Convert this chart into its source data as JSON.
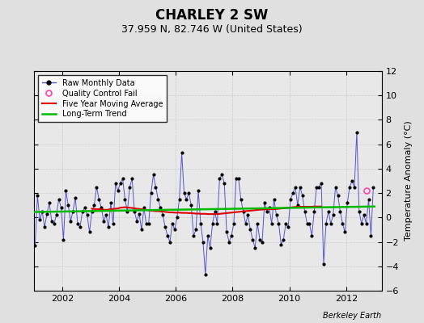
{
  "title": "CHARLEY 2 SW",
  "subtitle": "37.959 N, 82.746 W (United States)",
  "ylabel": "Temperature Anomaly (°C)",
  "credit": "Berkeley Earth",
  "ylim": [
    -6,
    12
  ],
  "yticks": [
    -6,
    -4,
    -2,
    0,
    2,
    4,
    6,
    8,
    10,
    12
  ],
  "xlim": [
    2001.0,
    2013.25
  ],
  "bg_color": "#e0e0e0",
  "plot_bg_color": "#e8e8e8",
  "raw_color": "#5555cc",
  "marker_color": "#000000",
  "ma_color": "#dd0000",
  "trend_color": "#00bb00",
  "qc_color": "#ff44aa",
  "raw_data": {
    "times": [
      2001.0417,
      2001.125,
      2001.2083,
      2001.2917,
      2001.375,
      2001.4583,
      2001.5417,
      2001.625,
      2001.7083,
      2001.7917,
      2001.875,
      2001.9583,
      2002.0417,
      2002.125,
      2002.2083,
      2002.2917,
      2002.375,
      2002.4583,
      2002.5417,
      2002.625,
      2002.7083,
      2002.7917,
      2002.875,
      2002.9583,
      2003.0417,
      2003.125,
      2003.2083,
      2003.2917,
      2003.375,
      2003.4583,
      2003.5417,
      2003.625,
      2003.7083,
      2003.7917,
      2003.875,
      2003.9583,
      2004.0417,
      2004.125,
      2004.2083,
      2004.2917,
      2004.375,
      2004.4583,
      2004.5417,
      2004.625,
      2004.7083,
      2004.7917,
      2004.875,
      2004.9583,
      2005.0417,
      2005.125,
      2005.2083,
      2005.2917,
      2005.375,
      2005.4583,
      2005.5417,
      2005.625,
      2005.7083,
      2005.7917,
      2005.875,
      2005.9583,
      2006.0417,
      2006.125,
      2006.2083,
      2006.2917,
      2006.375,
      2006.4583,
      2006.5417,
      2006.625,
      2006.7083,
      2006.7917,
      2006.875,
      2006.9583,
      2007.0417,
      2007.125,
      2007.2083,
      2007.2917,
      2007.375,
      2007.4583,
      2007.5417,
      2007.625,
      2007.7083,
      2007.7917,
      2007.875,
      2007.9583,
      2008.0417,
      2008.125,
      2008.2083,
      2008.2917,
      2008.375,
      2008.4583,
      2008.5417,
      2008.625,
      2008.7083,
      2008.7917,
      2008.875,
      2008.9583,
      2009.0417,
      2009.125,
      2009.2083,
      2009.2917,
      2009.375,
      2009.4583,
      2009.5417,
      2009.625,
      2009.7083,
      2009.7917,
      2009.875,
      2009.9583,
      2010.0417,
      2010.125,
      2010.2083,
      2010.2917,
      2010.375,
      2010.4583,
      2010.5417,
      2010.625,
      2010.7083,
      2010.7917,
      2010.875,
      2010.9583,
      2011.0417,
      2011.125,
      2011.2083,
      2011.2917,
      2011.375,
      2011.4583,
      2011.5417,
      2011.625,
      2011.7083,
      2011.7917,
      2011.875,
      2011.9583,
      2012.0417,
      2012.125,
      2012.2083,
      2012.2917,
      2012.375,
      2012.4583,
      2012.5417,
      2012.625,
      2012.7083,
      2012.7917,
      2012.875,
      2012.9583
    ],
    "values": [
      -2.3,
      1.8,
      -0.2,
      0.5,
      -0.8,
      0.3,
      1.2,
      -0.3,
      -0.5,
      0.2,
      1.5,
      0.8,
      -1.8,
      2.2,
      1.0,
      -0.3,
      0.5,
      1.6,
      -0.5,
      -0.8,
      0.5,
      0.8,
      0.2,
      -1.2,
      0.5,
      1.0,
      2.5,
      1.5,
      0.8,
      -0.3,
      0.2,
      -0.8,
      1.2,
      -0.5,
      2.8,
      2.2,
      2.8,
      3.2,
      1.5,
      0.5,
      2.5,
      3.2,
      0.5,
      -0.3,
      0.3,
      -1.0,
      0.8,
      -0.5,
      -0.5,
      2.0,
      3.5,
      2.5,
      1.5,
      0.8,
      0.2,
      -0.8,
      -1.5,
      -2.0,
      -0.5,
      -1.0,
      0.0,
      1.5,
      5.3,
      2.0,
      1.5,
      2.0,
      1.0,
      -1.5,
      -1.0,
      2.2,
      -0.5,
      -2.0,
      -4.7,
      -1.5,
      -2.5,
      -0.5,
      0.5,
      -0.5,
      3.2,
      3.5,
      2.8,
      -1.2,
      -2.0,
      -1.5,
      -0.5,
      3.2,
      3.2,
      1.5,
      0.5,
      -0.5,
      0.2,
      -1.0,
      -1.8,
      -2.5,
      -0.5,
      -1.8,
      -2.0,
      1.2,
      0.5,
      0.8,
      -0.5,
      1.5,
      0.2,
      -0.5,
      -2.2,
      -1.8,
      -0.5,
      -0.8,
      1.5,
      2.0,
      2.5,
      1.0,
      2.5,
      1.8,
      0.5,
      -0.5,
      -0.5,
      -1.5,
      0.5,
      2.5,
      2.5,
      2.8,
      -3.8,
      -0.5,
      0.5,
      -0.5,
      0.2,
      2.5,
      1.8,
      0.5,
      -0.5,
      -1.2,
      1.2,
      2.5,
      3.0,
      2.5,
      7.0,
      0.5,
      -0.5,
      0.2,
      -0.5,
      1.5,
      -1.5,
      2.5
    ]
  },
  "ma_data": {
    "times": [
      2003.0417,
      2003.125,
      2003.2083,
      2003.2917,
      2003.375,
      2003.4583,
      2003.5417,
      2003.625,
      2003.7083,
      2003.7917,
      2003.875,
      2003.9583,
      2004.0417,
      2004.125,
      2004.2083,
      2004.2917,
      2004.375,
      2004.4583,
      2004.5417,
      2004.625,
      2004.7083,
      2004.7917,
      2004.875,
      2004.9583,
      2005.0417,
      2005.125,
      2005.2083,
      2005.2917,
      2005.375,
      2005.4583,
      2005.5417,
      2005.625,
      2005.7083,
      2005.7917,
      2005.875,
      2005.9583,
      2006.0417,
      2006.125,
      2006.2083,
      2006.2917,
      2006.375,
      2006.4583,
      2006.5417,
      2006.625,
      2006.7083,
      2006.7917,
      2006.875,
      2006.9583,
      2007.0417,
      2007.125,
      2007.2083,
      2007.2917,
      2007.375,
      2007.4583,
      2007.5417,
      2007.625,
      2007.7083,
      2007.7917,
      2007.875,
      2007.9583,
      2008.0417,
      2008.125,
      2008.2083,
      2008.2917,
      2008.375,
      2008.4583,
      2008.5417,
      2008.625,
      2008.7083,
      2008.7917,
      2008.875,
      2008.9583,
      2009.0417,
      2009.125,
      2009.2083,
      2009.2917,
      2009.375,
      2009.4583,
      2009.5417,
      2009.625,
      2009.7083,
      2009.7917,
      2009.875,
      2009.9583,
      2010.0417,
      2010.125,
      2010.2083,
      2010.2917,
      2010.375,
      2010.4583,
      2010.5417,
      2010.625,
      2010.7083,
      2010.7917,
      2010.875,
      2010.9583,
      2011.0417,
      2011.125
    ],
    "values": [
      0.72,
      0.7,
      0.68,
      0.68,
      0.66,
      0.64,
      0.62,
      0.65,
      0.68,
      0.7,
      0.72,
      0.74,
      0.8,
      0.82,
      0.84,
      0.82,
      0.8,
      0.78,
      0.75,
      0.72,
      0.7,
      0.68,
      0.65,
      0.62,
      0.58,
      0.56,
      0.54,
      0.52,
      0.52,
      0.5,
      0.48,
      0.46,
      0.44,
      0.42,
      0.42,
      0.4,
      0.4,
      0.4,
      0.38,
      0.38,
      0.38,
      0.36,
      0.36,
      0.34,
      0.32,
      0.32,
      0.3,
      0.3,
      0.3,
      0.28,
      0.28,
      0.28,
      0.28,
      0.28,
      0.3,
      0.32,
      0.34,
      0.36,
      0.38,
      0.4,
      0.42,
      0.44,
      0.46,
      0.48,
      0.5,
      0.52,
      0.54,
      0.56,
      0.58,
      0.6,
      0.62,
      0.64,
      0.65,
      0.66,
      0.67,
      0.68,
      0.68,
      0.68,
      0.7,
      0.72,
      0.74,
      0.76,
      0.78,
      0.8,
      0.82,
      0.84,
      0.86,
      0.88,
      0.88,
      0.88,
      0.88,
      0.88,
      0.88,
      0.88,
      0.9,
      0.9,
      0.9,
      0.9
    ]
  },
  "trend_data": {
    "times": [
      2001.0,
      2013.0
    ],
    "values": [
      0.45,
      0.9
    ]
  },
  "qc_point": {
    "time": 2012.7083,
    "value": 2.2
  },
  "xticks": [
    2002,
    2004,
    2006,
    2008,
    2010,
    2012
  ],
  "title_fontsize": 12,
  "subtitle_fontsize": 9,
  "tick_fontsize": 8,
  "ylabel_fontsize": 8,
  "legend_fontsize": 7,
  "credit_fontsize": 7
}
